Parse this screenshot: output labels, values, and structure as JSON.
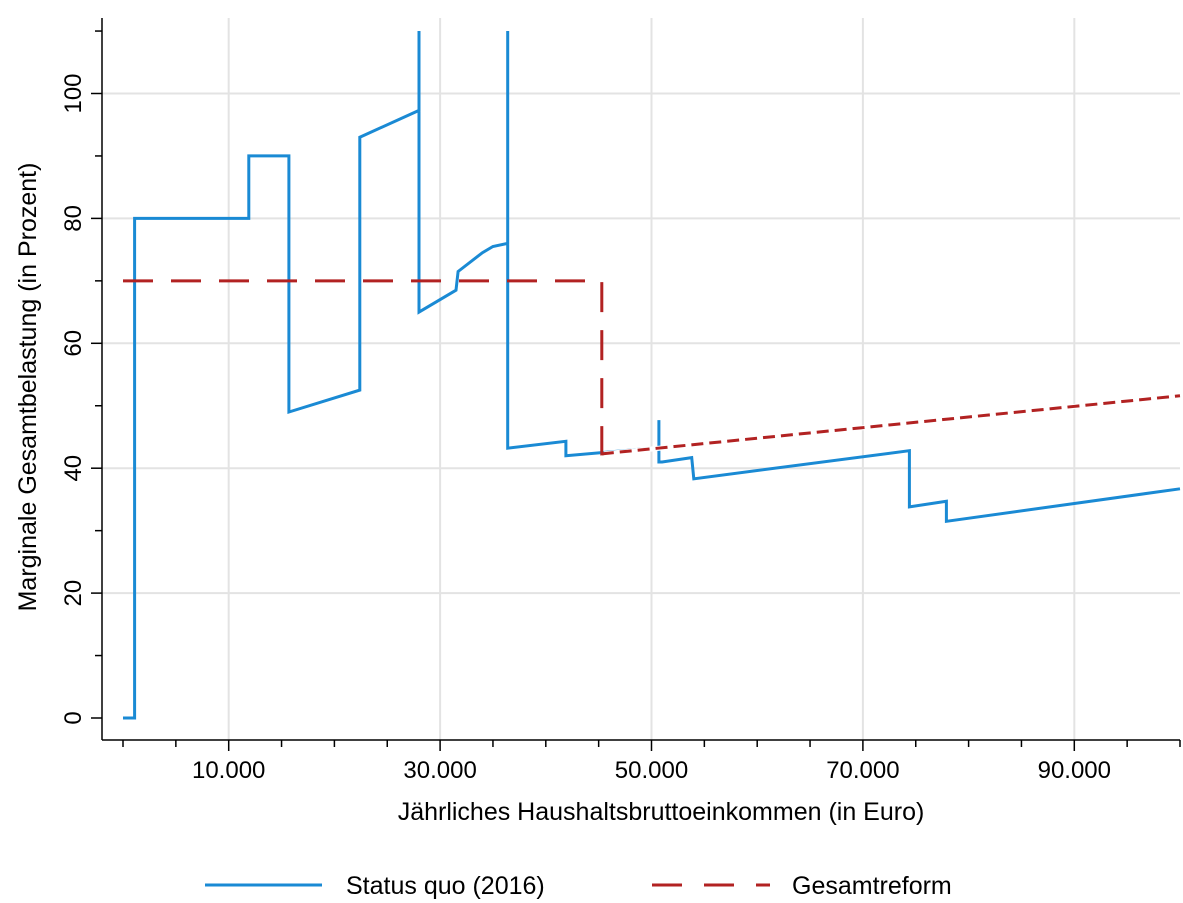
{
  "chart_data": {
    "type": "line",
    "xlabel": "Jährliches Haushaltsbruttoeinkommen (in Euro)",
    "ylabel": "Marginale Gesamtbelastung (in Prozent)",
    "xlim": [
      0,
      100000
    ],
    "ylim": [
      0,
      110
    ],
    "x_ticks": [
      {
        "value": 10000,
        "label": "10.000"
      },
      {
        "value": 30000,
        "label": "30.000"
      },
      {
        "value": 50000,
        "label": "50.000"
      },
      {
        "value": 70000,
        "label": "70.000"
      },
      {
        "value": 90000,
        "label": "90.000"
      }
    ],
    "x_minor_ticks": [
      0,
      5000,
      15000,
      20000,
      25000,
      35000,
      40000,
      45000,
      55000,
      60000,
      65000,
      75000,
      80000,
      85000,
      95000,
      100000
    ],
    "y_ticks": [
      {
        "value": 0,
        "label": "0"
      },
      {
        "value": 20,
        "label": "20"
      },
      {
        "value": 40,
        "label": "40"
      },
      {
        "value": 60,
        "label": "60"
      },
      {
        "value": 80,
        "label": "80"
      },
      {
        "value": 100,
        "label": "100"
      }
    ],
    "y_minor_ticks": [
      10,
      30,
      50,
      70,
      90,
      110
    ],
    "grid": true,
    "legend_position": "bottom",
    "series": [
      {
        "name": "Status quo (2016)",
        "color": "#1a8ad4",
        "style": "solid",
        "x": [
          0,
          1100,
          1100,
          11900,
          11900,
          15700,
          15700,
          22400,
          22400,
          28000,
          28000,
          28000,
          28000,
          31500,
          31700,
          34000,
          35000,
          36400,
          36400,
          36400,
          36400,
          41900,
          41900,
          50700,
          50700,
          50700,
          51000,
          53800,
          54000,
          74400,
          74400,
          77900,
          77900,
          100000
        ],
        "y": [
          0,
          0,
          80,
          80,
          90,
          90,
          49,
          52.5,
          93,
          97.3,
          110,
          110,
          65,
          68.5,
          71.5,
          74.5,
          75.5,
          76,
          110,
          110,
          43.2,
          44.3,
          42,
          43.3,
          47.7,
          41,
          41,
          41.7,
          38.3,
          42.8,
          33.8,
          34.7,
          31.5,
          36.7
        ]
      },
      {
        "name": "Gesamtreform",
        "color": "#b22222",
        "style": "dashed",
        "x": [
          0,
          45300,
          45300,
          45300,
          100000
        ],
        "y": [
          70,
          70,
          44.5,
          42.3,
          51.6
        ]
      }
    ]
  },
  "legend": {
    "items": [
      {
        "label": "Status quo (2016)"
      },
      {
        "label": "Gesamtreform"
      }
    ]
  }
}
